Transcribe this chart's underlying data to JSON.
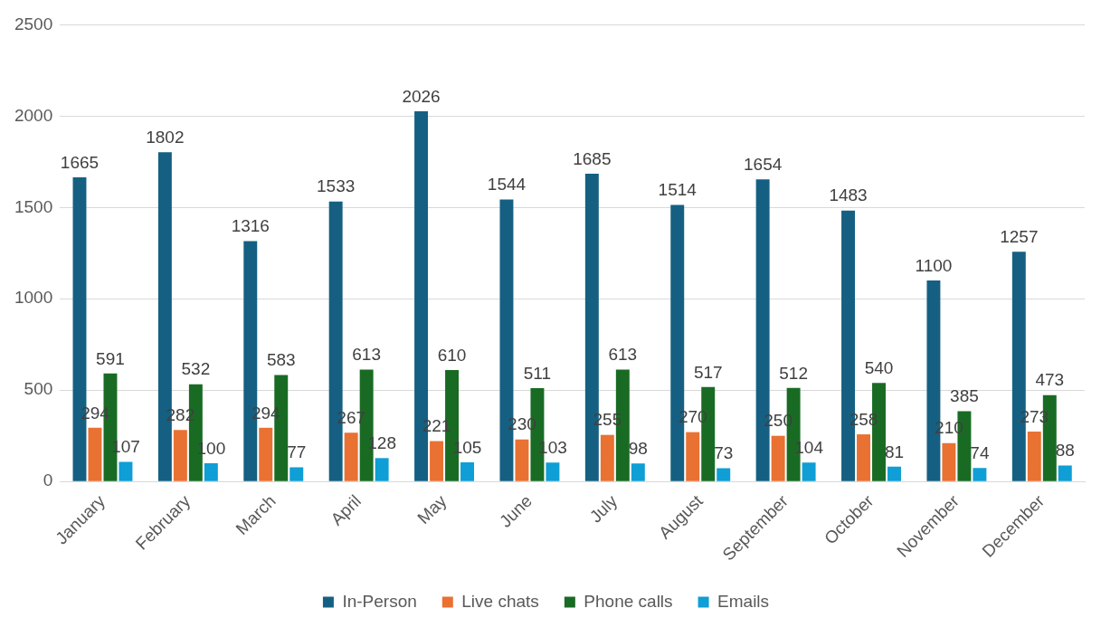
{
  "chart_data": {
    "type": "bar",
    "categories": [
      "January",
      "February",
      "March",
      "April",
      "May",
      "June",
      "July",
      "August",
      "September",
      "October",
      "November",
      "December"
    ],
    "series": [
      {
        "name": "In-Person",
        "color": "#156082",
        "values": [
          1665,
          1802,
          1316,
          1533,
          2026,
          1544,
          1685,
          1514,
          1654,
          1483,
          1100,
          1257
        ]
      },
      {
        "name": "Live chats",
        "color": "#e97132",
        "values": [
          294,
          282,
          294,
          267,
          221,
          230,
          255,
          270,
          250,
          258,
          210,
          273
        ]
      },
      {
        "name": "Phone calls",
        "color": "#196b24",
        "values": [
          591,
          532,
          583,
          613,
          610,
          511,
          613,
          517,
          512,
          540,
          385,
          473
        ]
      },
      {
        "name": "Emails",
        "color": "#0f9ed5",
        "values": [
          107,
          100,
          77,
          128,
          105,
          103,
          98,
          73,
          104,
          81,
          74,
          88
        ]
      }
    ],
    "ylim": [
      0,
      2500
    ],
    "yticks": [
      0,
      500,
      1000,
      1500,
      2000,
      2500
    ],
    "grid": "y",
    "legend": "bottom",
    "data_labels": true
  }
}
